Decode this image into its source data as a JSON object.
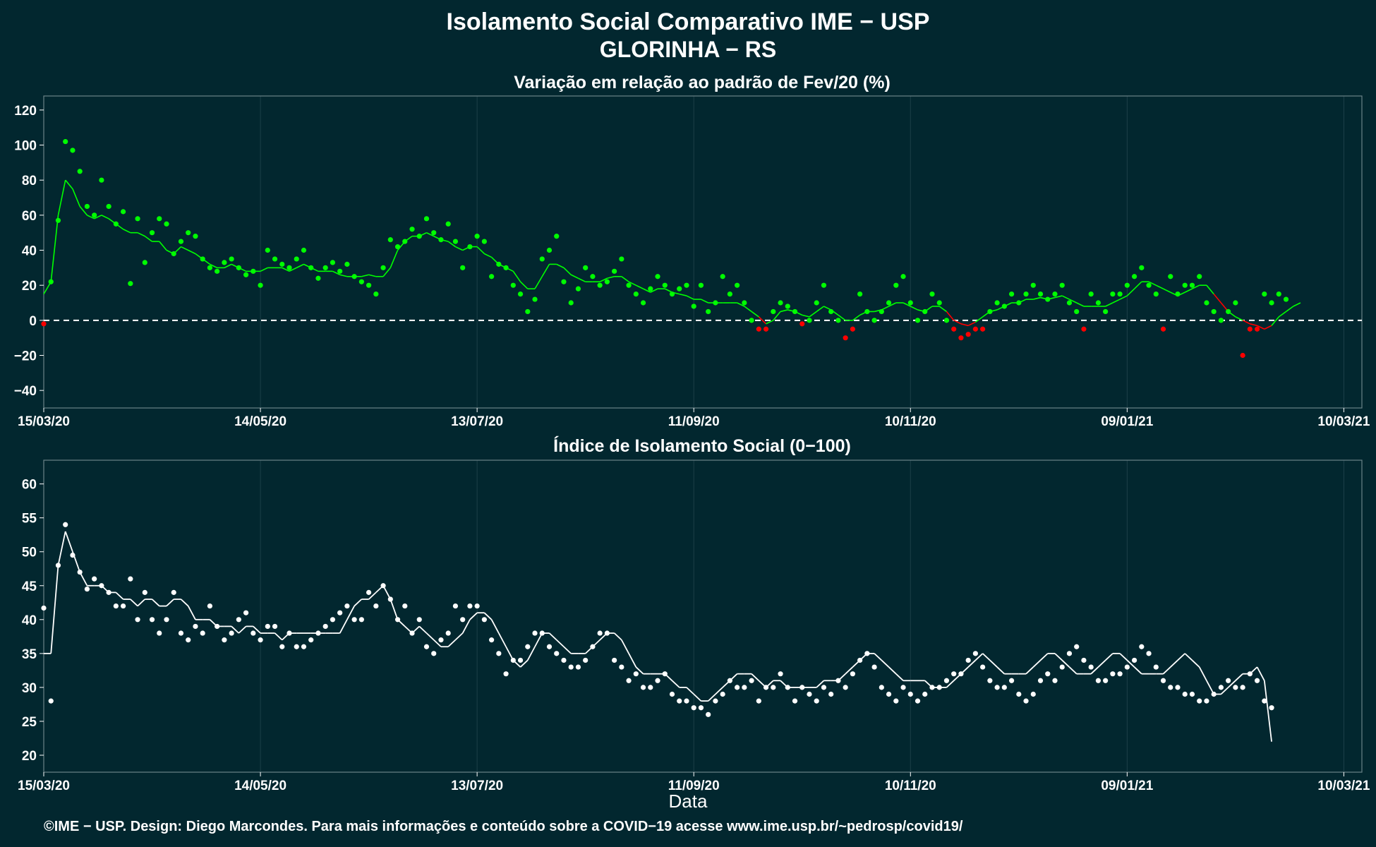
{
  "title_line1": "Isolamento Social Comparativo IME − USP",
  "title_line2": "GLORINHA − RS",
  "footer": "©IME − USP. Design: Diego Marcondes. Para mais informações e conteúdo sobre a COVID−19 acesse www.ime.usp.br/~pedrosp/covid19/",
  "colors": {
    "background": "#02272f",
    "positive": "#00ff00",
    "negative": "#ff0000",
    "index": "#ffffff",
    "panel_border": "#6b8288",
    "grid": "#1c4048"
  },
  "chart_data": [
    {
      "type": "scatter",
      "title": "Variação em relação ao padrão de Fev/20 (%)",
      "xlabel": "",
      "ylabel": "",
      "x_ticks": [
        "15/03/20",
        "14/05/20",
        "13/07/20",
        "11/09/20",
        "10/11/20",
        "09/01/21",
        "10/03/21"
      ],
      "x_range": [
        "2020-03-15",
        "2021-03-15"
      ],
      "ylim": [
        -50,
        128
      ],
      "y_ticks": [
        120,
        100,
        80,
        60,
        40,
        20,
        0,
        -20,
        -40
      ],
      "reference_line": 0,
      "grid": true,
      "series": [
        {
          "name": "",
          "kind": "points",
          "values_sampled_every_2_days_from_2020-03-15": [
            -2,
            22,
            57,
            102,
            97,
            85,
            65,
            60,
            80,
            65,
            55,
            62,
            21,
            58,
            33,
            50,
            58,
            55,
            38,
            45,
            50,
            48,
            35,
            30,
            28,
            33,
            35,
            30,
            26,
            28,
            20,
            40,
            35,
            32,
            30,
            35,
            40,
            30,
            24,
            30,
            33,
            28,
            32,
            25,
            22,
            20,
            15,
            30,
            46,
            42,
            45,
            52,
            48,
            58,
            50,
            46,
            55,
            45,
            30,
            42,
            48,
            45,
            25,
            32,
            30,
            20,
            15,
            5,
            12,
            35,
            40,
            48,
            22,
            10,
            18,
            30,
            25,
            20,
            22,
            28,
            35,
            20,
            15,
            10,
            18,
            25,
            20,
            15,
            18,
            20,
            8,
            20,
            5,
            10,
            25,
            15,
            20,
            10,
            0,
            -5,
            -5,
            5,
            10,
            8,
            5,
            -2,
            0,
            10,
            20,
            5,
            0,
            -10,
            -5,
            15,
            5,
            0,
            5,
            10,
            20,
            25,
            10,
            0,
            5,
            15,
            10,
            0,
            -5,
            -10,
            -8,
            -5,
            -5,
            5,
            10,
            8,
            15,
            10,
            15,
            20,
            15,
            12,
            15,
            20,
            10,
            5,
            -5,
            15,
            10,
            5,
            15,
            15,
            20,
            25,
            30,
            20,
            15,
            -5,
            25,
            15,
            20,
            20,
            25,
            10,
            5,
            0,
            5,
            10,
            -20,
            -5,
            -5,
            15,
            10,
            15,
            12
          ]
        },
        {
          "name": "",
          "kind": "moving_average",
          "values_sampled_every_2_days_from_2020-03-15": [
            15,
            22,
            60,
            80,
            75,
            65,
            60,
            58,
            60,
            58,
            55,
            52,
            50,
            50,
            48,
            45,
            45,
            40,
            38,
            42,
            40,
            38,
            35,
            32,
            30,
            30,
            32,
            30,
            28,
            28,
            28,
            30,
            30,
            30,
            28,
            30,
            32,
            30,
            28,
            28,
            28,
            26,
            25,
            25,
            25,
            26,
            25,
            25,
            30,
            40,
            45,
            48,
            48,
            50,
            48,
            46,
            45,
            42,
            40,
            42,
            42,
            38,
            36,
            32,
            30,
            28,
            22,
            18,
            18,
            25,
            32,
            32,
            30,
            26,
            24,
            22,
            22,
            22,
            24,
            25,
            25,
            22,
            20,
            18,
            16,
            18,
            18,
            16,
            15,
            14,
            12,
            12,
            10,
            10,
            10,
            10,
            10,
            8,
            5,
            2,
            -2,
            0,
            5,
            6,
            5,
            3,
            2,
            5,
            8,
            6,
            3,
            0,
            0,
            3,
            5,
            5,
            6,
            8,
            10,
            10,
            8,
            6,
            5,
            8,
            8,
            5,
            0,
            -2,
            -3,
            -1,
            2,
            5,
            6,
            8,
            10,
            10,
            12,
            12,
            13,
            12,
            13,
            14,
            12,
            10,
            8,
            8,
            8,
            8,
            10,
            12,
            14,
            18,
            22,
            22,
            20,
            18,
            16,
            14,
            16,
            18,
            20,
            20,
            15,
            10,
            5,
            2,
            0,
            -2,
            -3,
            -5,
            -3,
            2,
            5,
            8,
            10
          ]
        }
      ]
    },
    {
      "type": "scatter",
      "title": "Índice de Isolamento Social (0−100)",
      "xlabel": "Data",
      "ylabel": "",
      "x_ticks": [
        "15/03/20",
        "14/05/20",
        "13/07/20",
        "11/09/20",
        "10/11/20",
        "09/01/21",
        "10/03/21"
      ],
      "x_range": [
        "2020-03-15",
        "2021-03-15"
      ],
      "ylim": [
        17.5,
        63.5
      ],
      "y_ticks": [
        60,
        55,
        50,
        45,
        40,
        35,
        30,
        25,
        20
      ],
      "grid": true,
      "series": [
        {
          "name": "",
          "kind": "points",
          "values_sampled_every_2_days_from_2020-03-15": [
            41.7,
            28,
            48,
            54,
            49.5,
            47,
            44.5,
            46,
            45,
            44,
            42,
            42,
            46,
            40,
            44,
            40,
            38,
            40,
            44,
            38,
            37,
            39,
            38,
            42,
            39,
            37,
            38,
            40,
            41,
            38,
            37,
            39,
            39,
            36,
            38,
            36,
            36,
            37,
            38,
            39,
            40,
            41,
            42,
            40,
            40,
            44,
            42,
            45,
            43,
            40,
            42,
            38,
            40,
            36,
            35,
            37,
            38,
            42,
            40,
            42,
            42,
            40,
            37,
            35,
            32,
            34,
            34,
            36,
            38,
            38,
            36,
            35,
            34,
            33,
            33,
            34,
            36,
            38,
            38,
            34,
            33,
            31,
            32,
            30,
            30,
            31,
            32,
            29,
            28,
            28,
            27,
            27,
            26,
            28,
            29,
            31,
            30,
            30,
            31,
            28,
            30,
            30,
            32,
            30,
            28,
            30,
            29,
            28,
            30,
            29,
            31,
            30,
            32,
            34,
            35,
            33,
            30,
            29,
            28,
            30,
            29,
            28,
            29,
            30,
            30,
            31,
            32,
            32,
            34,
            35,
            33,
            31,
            30,
            30,
            31,
            29,
            28,
            29,
            31,
            32,
            31,
            33,
            35,
            36,
            34,
            33,
            31,
            31,
            32,
            32,
            33,
            34,
            36,
            35,
            33,
            31,
            30,
            30,
            29,
            29,
            28,
            28,
            29,
            30,
            31,
            30,
            30,
            32,
            31,
            28,
            27
          ]
        },
        {
          "name": "",
          "kind": "moving_average",
          "values_sampled_every_2_days_from_2020-03-15": [
            35,
            35,
            48,
            53,
            50,
            47,
            45,
            45,
            45,
            44,
            44,
            43,
            43,
            42,
            43,
            43,
            42,
            42,
            43,
            43,
            42,
            40,
            40,
            40,
            39,
            39,
            39,
            38,
            39,
            39,
            38,
            38,
            38,
            37,
            38,
            38,
            38,
            38,
            38,
            38,
            38,
            38,
            40,
            42,
            43,
            43,
            44,
            45,
            43,
            40,
            39,
            38,
            39,
            38,
            37,
            36,
            36,
            37,
            38,
            40,
            41,
            41,
            40,
            38,
            36,
            34,
            33,
            34,
            36,
            38,
            38,
            37,
            36,
            35,
            35,
            35,
            36,
            37,
            38,
            38,
            37,
            35,
            33,
            32,
            32,
            32,
            32,
            31,
            30,
            30,
            29,
            28,
            28,
            29,
            30,
            31,
            32,
            32,
            32,
            31,
            30,
            31,
            31,
            30,
            30,
            30,
            30,
            30,
            31,
            31,
            31,
            32,
            33,
            34,
            35,
            35,
            34,
            33,
            32,
            31,
            31,
            31,
            31,
            30,
            30,
            30,
            31,
            32,
            33,
            34,
            35,
            34,
            33,
            32,
            32,
            32,
            32,
            33,
            34,
            35,
            35,
            34,
            33,
            32,
            32,
            32,
            33,
            34,
            35,
            35,
            34,
            33,
            32,
            32,
            32,
            32,
            33,
            34,
            35,
            34,
            33,
            31,
            29,
            29,
            30,
            31,
            32,
            32,
            33,
            31,
            22
          ]
        }
      ]
    }
  ]
}
